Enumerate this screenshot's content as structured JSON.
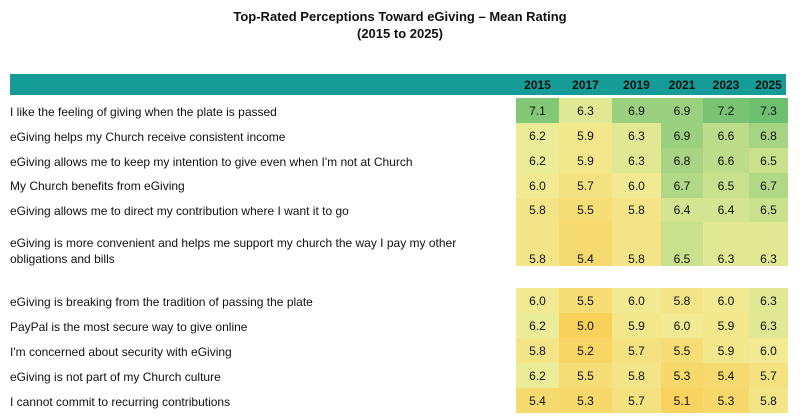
{
  "title": "Top-Rated Perceptions Toward eGiving – Mean Rating",
  "subtitle": "(2015 to 2025)",
  "chart_data": {
    "type": "heatmap",
    "title": "Top-Rated Perceptions Toward eGiving – Mean Rating",
    "subtitle": "(2015 to 2025)",
    "columns": [
      "2015",
      "2017",
      "2019",
      "2021",
      "2023",
      "2025"
    ],
    "color_scale": {
      "low": "#f9d05a",
      "mid": "#f1ee9a",
      "high": "#6cc06f",
      "min": 5.0,
      "max": 7.3
    },
    "rows": [
      {
        "label": "I like the feeling of giving when the plate is passed",
        "values": [
          7.1,
          6.3,
          6.9,
          6.9,
          7.2,
          7.3
        ]
      },
      {
        "label": "eGiving helps my Church receive consistent income",
        "values": [
          6.2,
          5.9,
          6.3,
          6.9,
          6.6,
          6.8
        ]
      },
      {
        "label": "eGiving allows me to keep my intention to give even when I'm not at Church",
        "values": [
          6.2,
          5.9,
          6.3,
          6.8,
          6.6,
          6.5
        ]
      },
      {
        "label": "My Church benefits from eGiving",
        "values": [
          6.0,
          5.7,
          6.0,
          6.7,
          6.5,
          6.7
        ]
      },
      {
        "label": "eGiving allows me to direct my contribution where I want it to go",
        "values": [
          5.8,
          5.5,
          5.8,
          6.4,
          6.4,
          6.5
        ]
      },
      {
        "label": "eGiving is more convenient and helps me support my church the way I pay my other obligations and bills",
        "values": [
          5.8,
          5.4,
          5.8,
          6.5,
          6.3,
          6.3
        ]
      },
      {
        "label": "eGiving is breaking from the tradition of passing the plate",
        "values": [
          6.0,
          5.5,
          6.0,
          5.8,
          6.0,
          6.3
        ]
      },
      {
        "label": "PayPal is the most secure way to give online",
        "values": [
          6.2,
          5.0,
          5.9,
          6.0,
          5.9,
          6.3
        ]
      },
      {
        "label": "I'm concerned about security with eGiving",
        "values": [
          5.8,
          5.2,
          5.7,
          5.5,
          5.9,
          6.0
        ]
      },
      {
        "label": "eGiving is not part of my Church culture",
        "values": [
          6.2,
          5.5,
          5.8,
          5.3,
          5.4,
          5.7
        ]
      },
      {
        "label": "I cannot commit to recurring contributions",
        "values": [
          5.4,
          5.3,
          5.7,
          5.1,
          5.3,
          5.8
        ]
      }
    ]
  }
}
